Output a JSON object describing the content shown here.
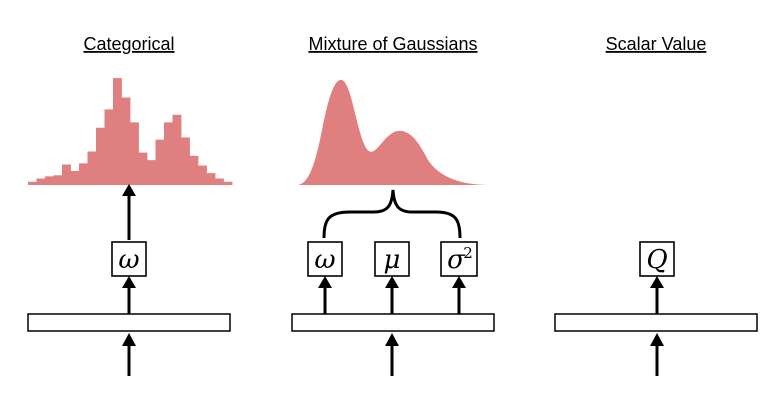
{
  "panels": {
    "categorical": {
      "title": "Categorical",
      "output_symbol": "ω",
      "distribution_shape": "histogram",
      "fill_color": "#e07f7f"
    },
    "mixture": {
      "title": "Mixture of Gaussians",
      "outputs": [
        {
          "symbol": "ω",
          "superscript": ""
        },
        {
          "symbol": "μ",
          "superscript": ""
        },
        {
          "symbol": "σ",
          "superscript": "2"
        }
      ],
      "distribution_shape": "bimodal-density",
      "fill_color": "#e07f7f"
    },
    "scalar": {
      "title": "Scalar Value",
      "output_symbol": "Q"
    }
  },
  "colors": {
    "distribution": "#e07f7f",
    "stroke": "#000000",
    "background": "#ffffff"
  },
  "histogram_levels": [
    0.03,
    0.06,
    0.08,
    0.09,
    0.19,
    0.13,
    0.2,
    0.31,
    0.53,
    0.7,
    0.99,
    0.81,
    0.58,
    0.3,
    0.23,
    0.42,
    0.58,
    0.65,
    0.44,
    0.27,
    0.18,
    0.11,
    0.06,
    0.03
  ]
}
